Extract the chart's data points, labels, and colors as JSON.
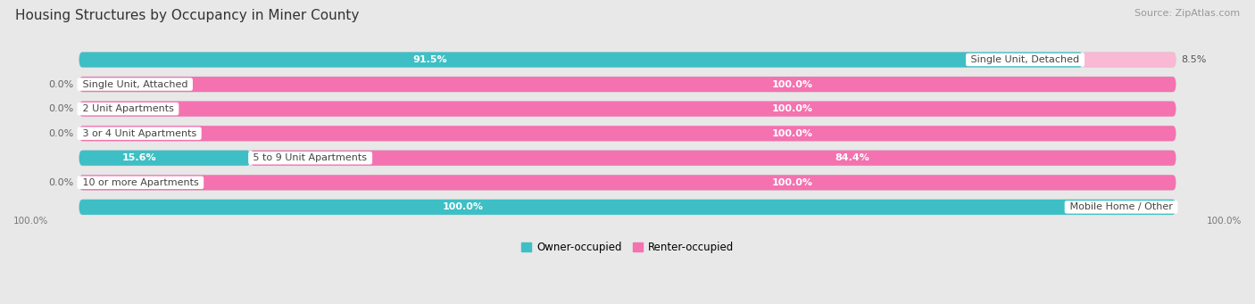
{
  "title": "Housing Structures by Occupancy in Miner County",
  "source": "Source: ZipAtlas.com",
  "categories": [
    "Single Unit, Detached",
    "Single Unit, Attached",
    "2 Unit Apartments",
    "3 or 4 Unit Apartments",
    "5 to 9 Unit Apartments",
    "10 or more Apartments",
    "Mobile Home / Other"
  ],
  "owner_pct": [
    91.5,
    0.0,
    0.0,
    0.0,
    15.6,
    0.0,
    100.0
  ],
  "renter_pct": [
    8.5,
    100.0,
    100.0,
    100.0,
    84.4,
    100.0,
    0.0
  ],
  "owner_color": "#3dbfc5",
  "renter_color": "#f472b0",
  "renter_color_light": "#f9b8d4",
  "owner_label": "Owner-occupied",
  "renter_label": "Renter-occupied",
  "background_color": "#e8e8e8",
  "bar_background": "#f5f5f5",
  "title_fontsize": 11,
  "source_fontsize": 8,
  "label_fontsize": 8,
  "cat_fontsize": 8,
  "bar_height": 0.62,
  "figsize": [
    14.06,
    3.41
  ],
  "bottom_labels": [
    "100.0%",
    "100.0%"
  ],
  "xlim": [
    0,
    100
  ],
  "n_bars": 7
}
